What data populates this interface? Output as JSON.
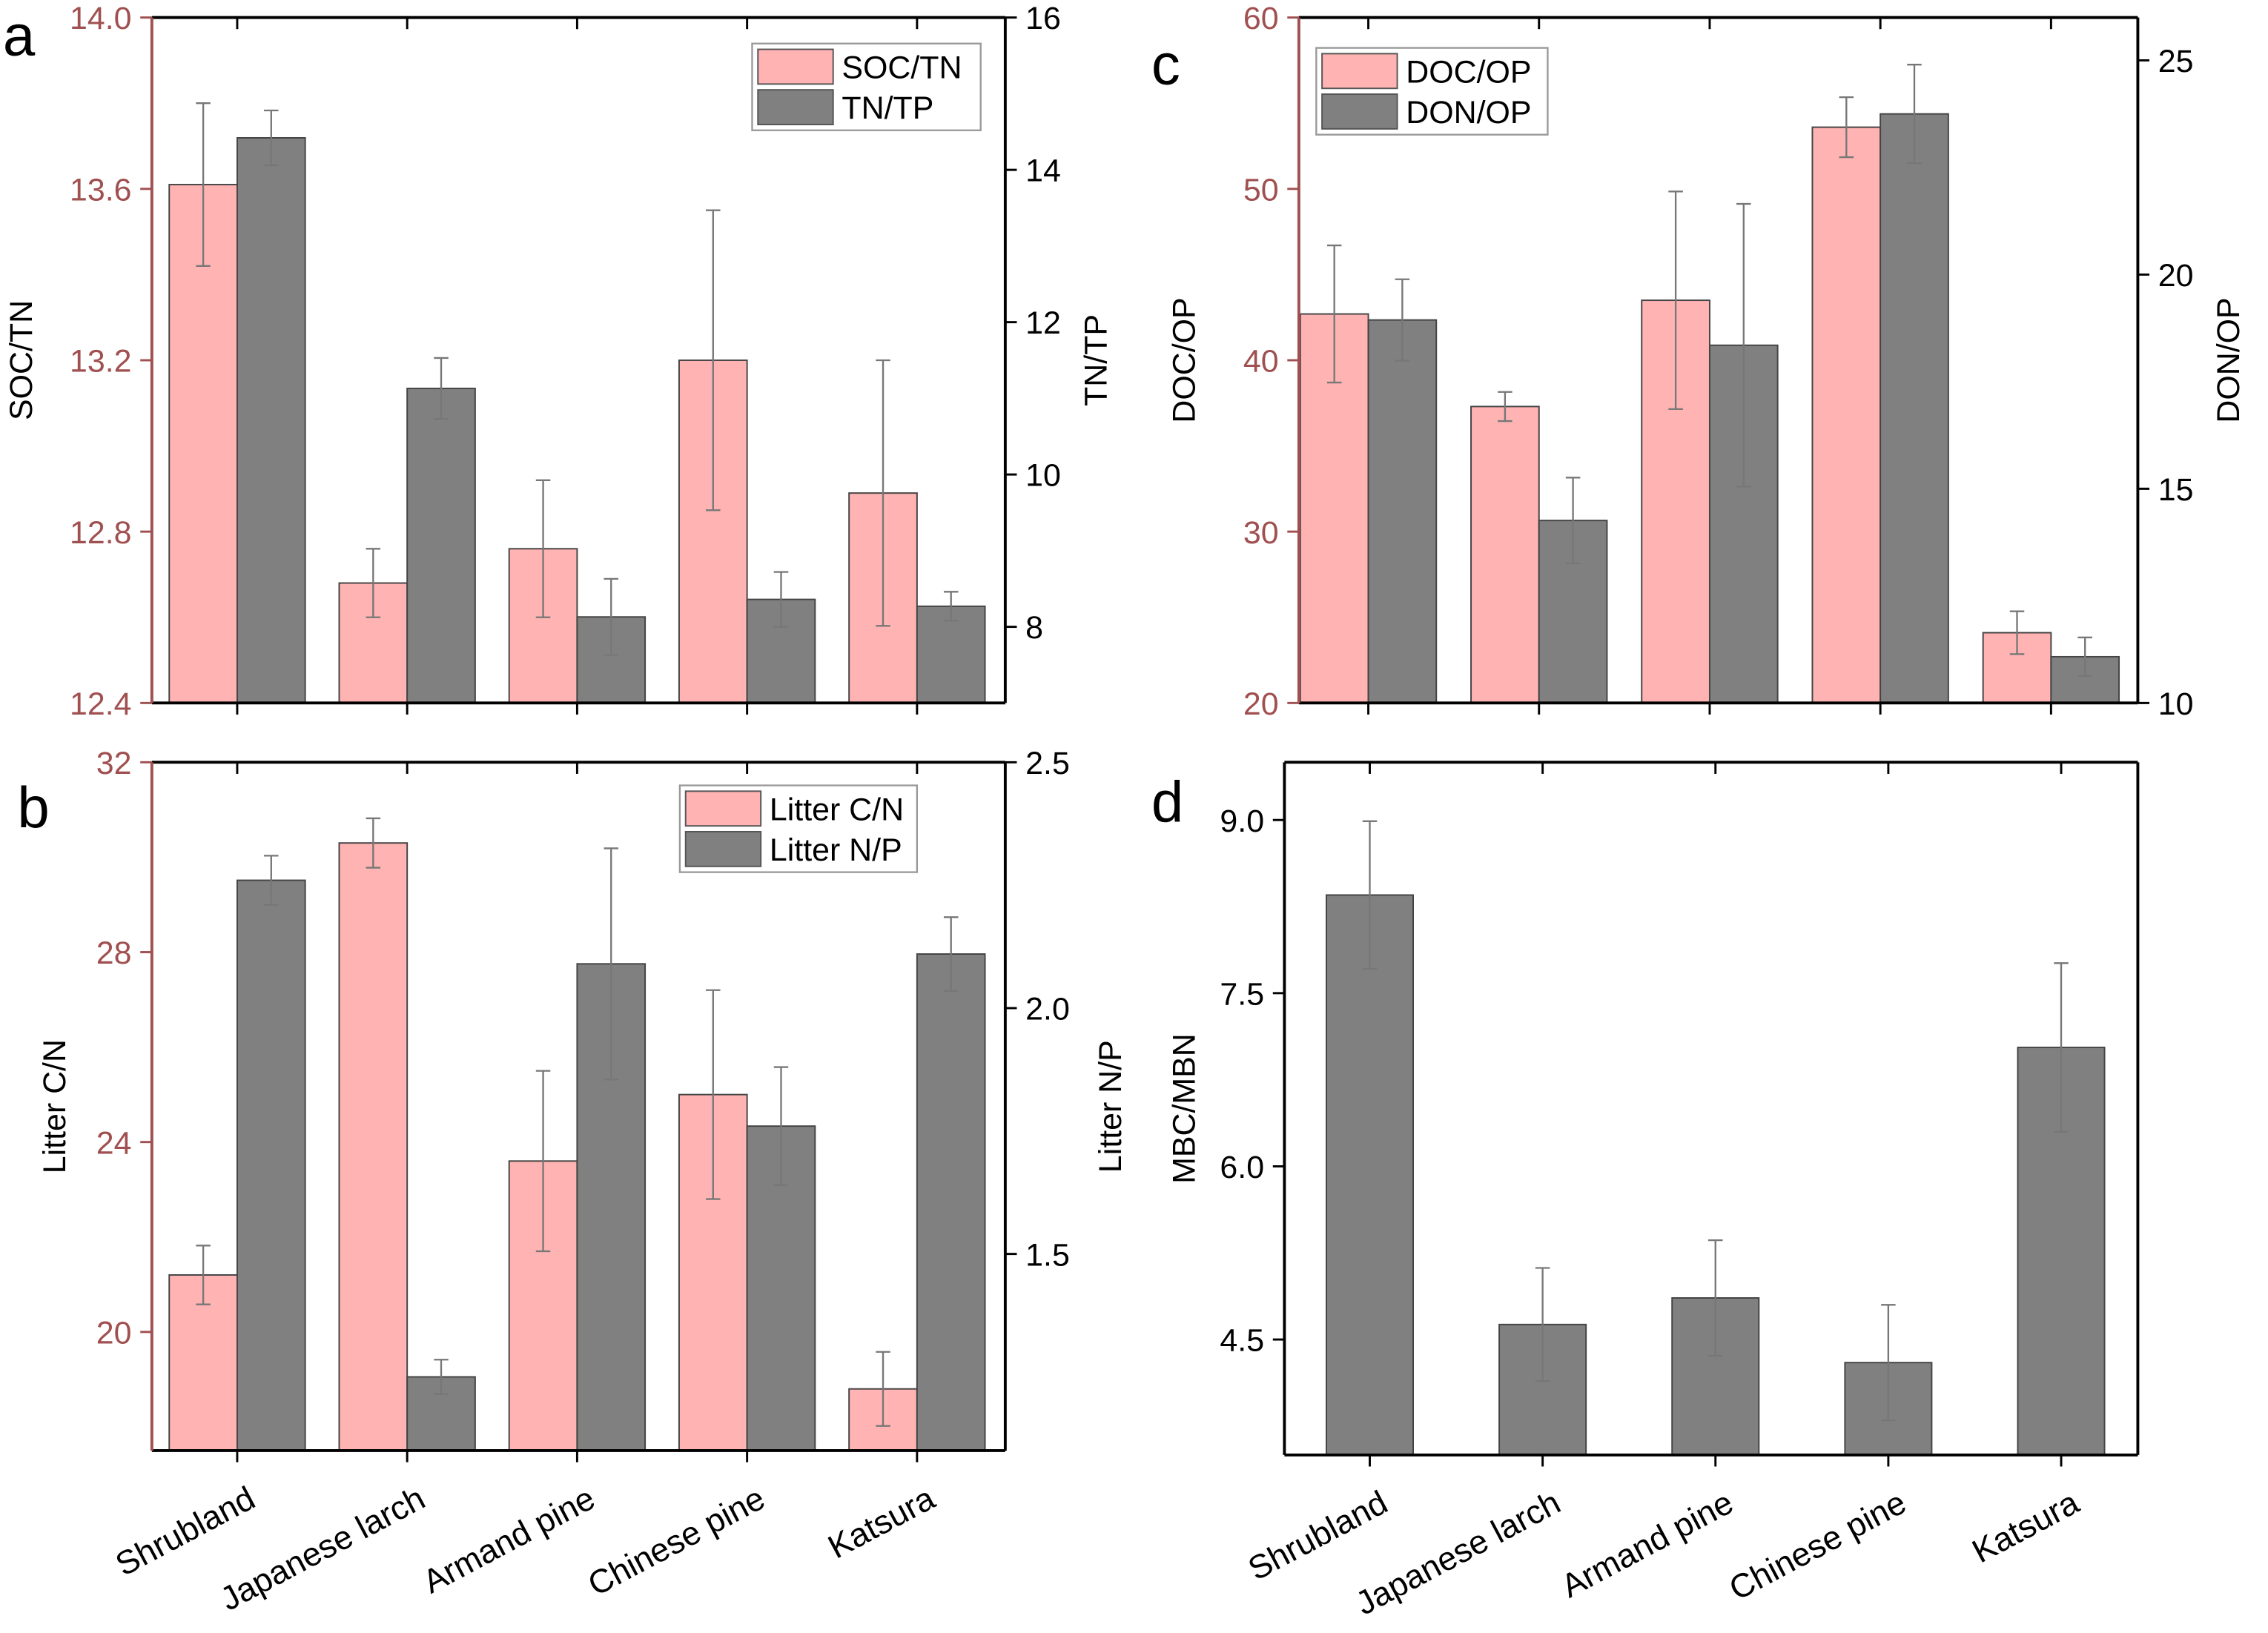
{
  "colors": {
    "series1": "#ffb3b3",
    "series2": "#808080",
    "left_axis": "#a05050",
    "right_axis": "#000000",
    "errorbar": "#777777"
  },
  "chart_data": [
    {
      "panel": "a",
      "type": "bar",
      "categories": [
        "Shrubland",
        "Japanese larch",
        "Armand pine",
        "Chinese pine",
        "Katsura"
      ],
      "show_category_labels": false,
      "legend": "top-right",
      "ylabel": "SOC/TN",
      "ylim": [
        12.4,
        14.0
      ],
      "yticks": [
        "12.4",
        "12.8",
        "13.2",
        "13.6",
        "14.0"
      ],
      "y2label": "TN/TP",
      "y2lim": [
        7,
        16
      ],
      "y2ticks": [
        "8",
        "10",
        "12",
        "14",
        "16"
      ],
      "series": [
        {
          "name": "SOC/TN",
          "axis": "left",
          "values": [
            13.61,
            12.68,
            12.76,
            13.2,
            12.89
          ],
          "errors": [
            0.19,
            0.08,
            0.16,
            0.35,
            0.31
          ]
        },
        {
          "name": "TN/TP",
          "axis": "right",
          "values": [
            14.42,
            11.13,
            8.13,
            8.36,
            8.27
          ],
          "errors": [
            0.36,
            0.4,
            0.5,
            0.36,
            0.19
          ]
        }
      ]
    },
    {
      "panel": "b",
      "type": "bar",
      "categories": [
        "Shrubland",
        "Japanese larch",
        "Armand pine",
        "Chinese pine",
        "Katsura"
      ],
      "show_category_labels": true,
      "legend": "top-right",
      "ylabel": "Litter C/N",
      "ylim": [
        17.5,
        32
      ],
      "yticks": [
        "20",
        "24",
        "28",
        "32"
      ],
      "y2label": "Litter N/P",
      "y2lim": [
        1.1,
        2.5
      ],
      "y2ticks": [
        "1.5",
        "2.0",
        "2.5"
      ],
      "series": [
        {
          "name": "Litter C/N",
          "axis": "left",
          "values": [
            21.2,
            30.3,
            23.6,
            25.0,
            18.8
          ],
          "errors": [
            0.62,
            0.52,
            1.9,
            2.2,
            0.78
          ]
        },
        {
          "name": "Litter N/P",
          "axis": "right",
          "values": [
            2.26,
            1.25,
            2.09,
            1.76,
            2.11
          ],
          "errors": [
            0.05,
            0.035,
            0.235,
            0.12,
            0.075
          ]
        }
      ]
    },
    {
      "panel": "c",
      "type": "bar",
      "categories": [
        "Shrubland",
        "Japanese larch",
        "Armand pine",
        "Chinese pine",
        "Katsura"
      ],
      "show_category_labels": false,
      "legend": "top-left",
      "ylabel": "DOC/OP",
      "ylim": [
        20,
        60
      ],
      "yticks": [
        "20",
        "30",
        "40",
        "50",
        "60"
      ],
      "y2label": "DON/OP",
      "y2lim": [
        10,
        26
      ],
      "y2ticks": [
        "10",
        "15",
        "20",
        "25"
      ],
      "series": [
        {
          "name": "DOC/OP",
          "axis": "left",
          "values": [
            42.7,
            37.3,
            43.5,
            53.6,
            24.1
          ],
          "errors": [
            4.0,
            0.85,
            6.35,
            1.75,
            1.25
          ]
        },
        {
          "name": "DON/OP",
          "axis": "right",
          "values": [
            18.94,
            14.26,
            18.35,
            23.75,
            11.08
          ],
          "errors": [
            0.95,
            1.0,
            3.3,
            1.15,
            0.45
          ]
        }
      ]
    },
    {
      "panel": "d",
      "type": "bar",
      "categories": [
        "Shrubland",
        "Japanese larch",
        "Armand pine",
        "Chinese pine",
        "Katsura"
      ],
      "show_category_labels": true,
      "ylabel": "MBC/MBN",
      "ylim": [
        3.5,
        9.5
      ],
      "yticks": [
        "4.5",
        "6.0",
        "7.5",
        "9.0"
      ],
      "series": [
        {
          "axis": "left",
          "values": [
            8.35,
            4.63,
            4.86,
            4.3,
            7.03
          ],
          "errors": [
            0.64,
            0.49,
            0.5,
            0.5,
            0.73
          ]
        }
      ]
    }
  ]
}
